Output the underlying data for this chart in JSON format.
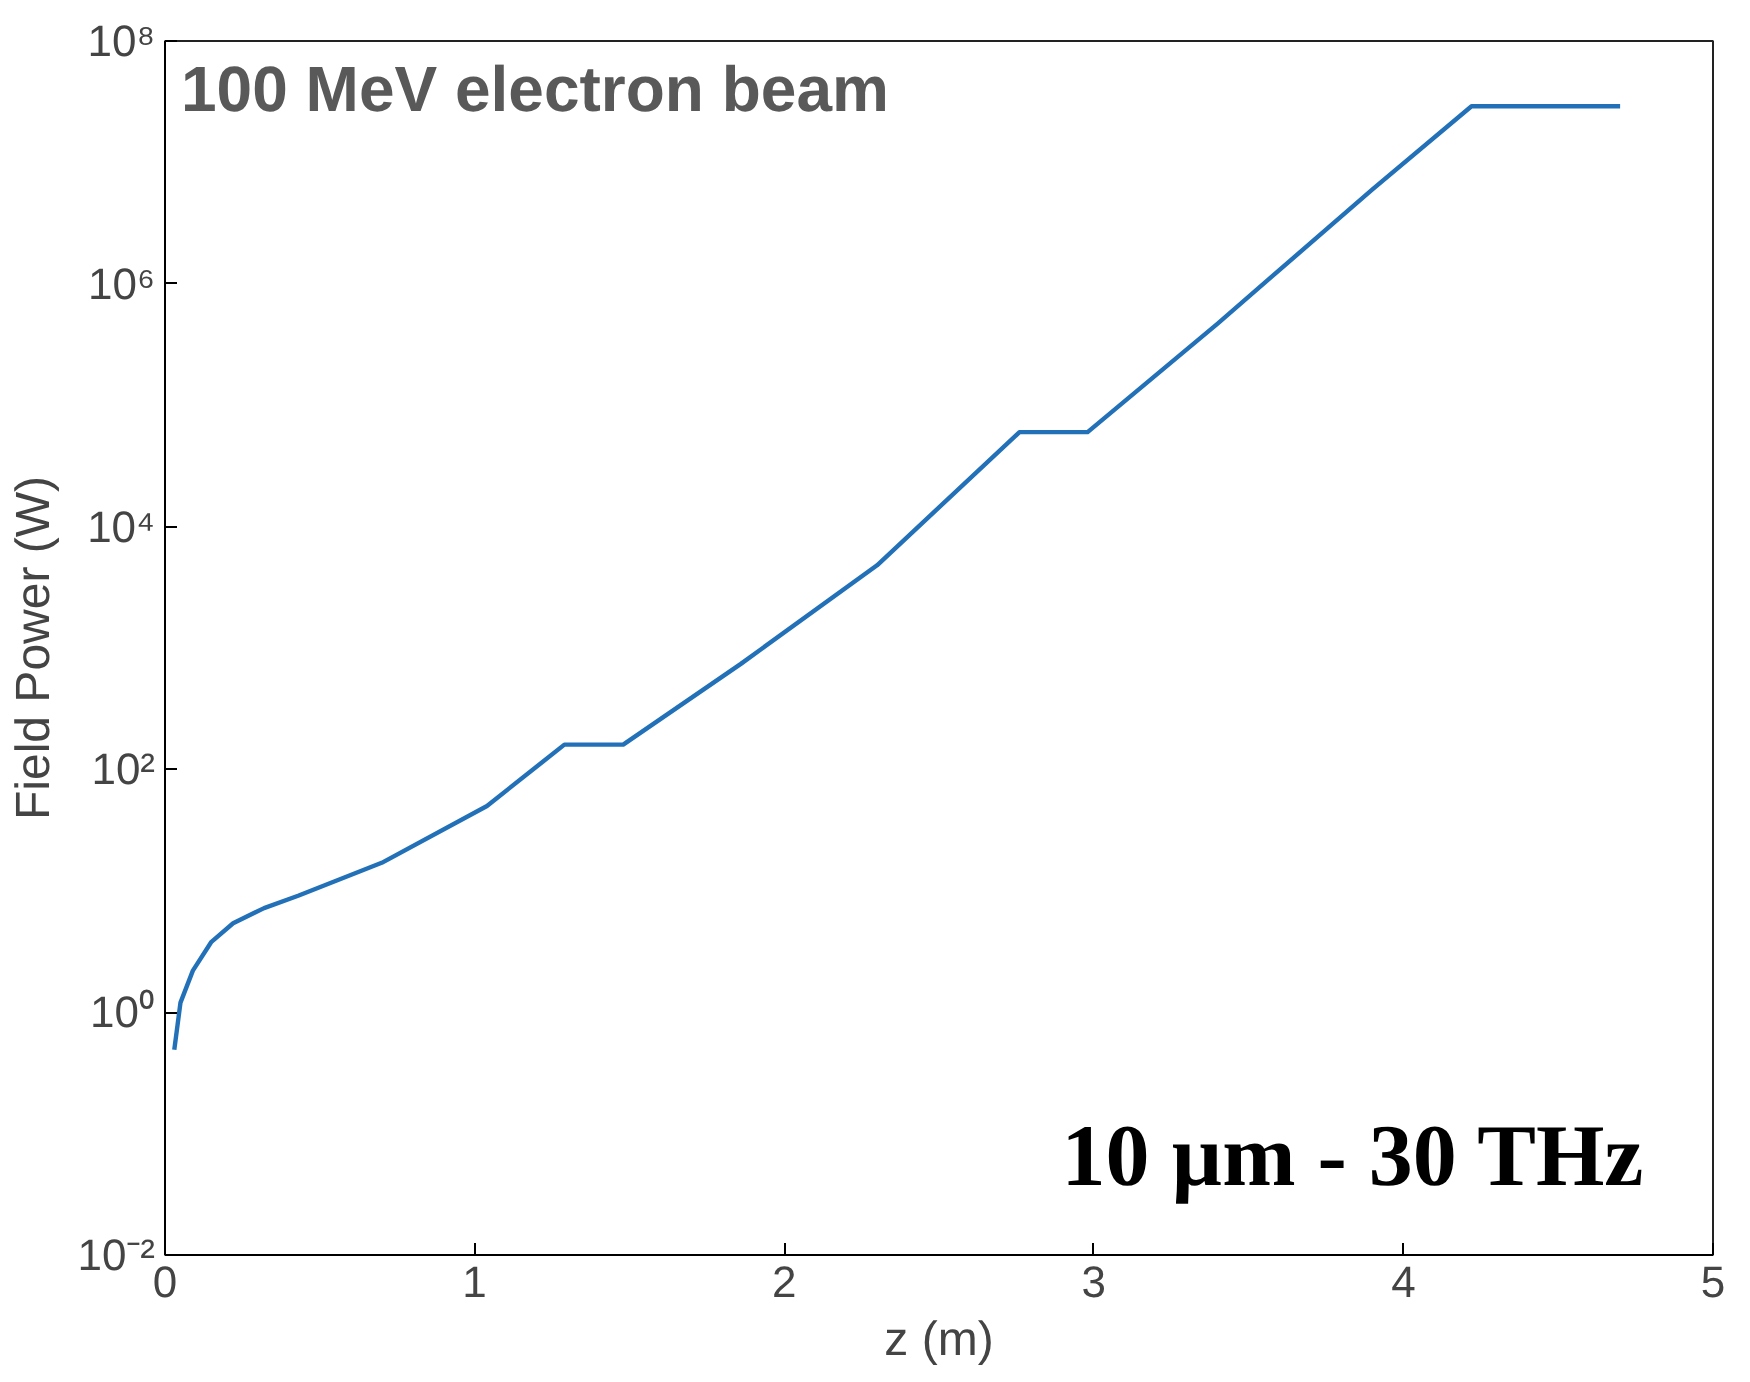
{
  "chart_data": {
    "type": "line",
    "xlabel": "z (m)",
    "ylabel": "Field Power (W)",
    "log": "y",
    "grid": false,
    "marker": "none",
    "line_style": "solid",
    "xlim": [
      0,
      5
    ],
    "xticks": [
      0,
      1,
      2,
      3,
      4,
      5
    ],
    "ylim": [
      0.01,
      100000000
    ],
    "yticks": [
      {
        "value": 0.01,
        "label": "10⁻²"
      },
      {
        "value": 1,
        "label": "10⁰"
      },
      {
        "value": 100,
        "label": "10²"
      },
      {
        "value": 10000,
        "label": "10⁴"
      },
      {
        "value": 1000000,
        "label": "10⁶"
      },
      {
        "value": 100000000,
        "label": "10⁸"
      }
    ],
    "x": [
      0.03,
      0.05,
      0.09,
      0.15,
      0.22,
      0.32,
      0.43,
      0.7,
      1.04,
      1.29,
      1.48,
      1.86,
      2.3,
      2.76,
      2.98,
      3.4,
      3.9,
      4.22,
      4.7
    ],
    "series": [
      {
        "color": "#2271b8",
        "values": [
          0.49,
          1.2,
          2.2,
          3.8,
          5.4,
          7.2,
          9.1,
          17,
          50,
          160,
          160,
          740,
          4800,
          60000,
          60000,
          470000,
          6000000,
          29000000,
          29000000
        ]
      }
    ],
    "annotations": [
      "100 MeV electron beam",
      "10 µm - 30 THz"
    ]
  }
}
